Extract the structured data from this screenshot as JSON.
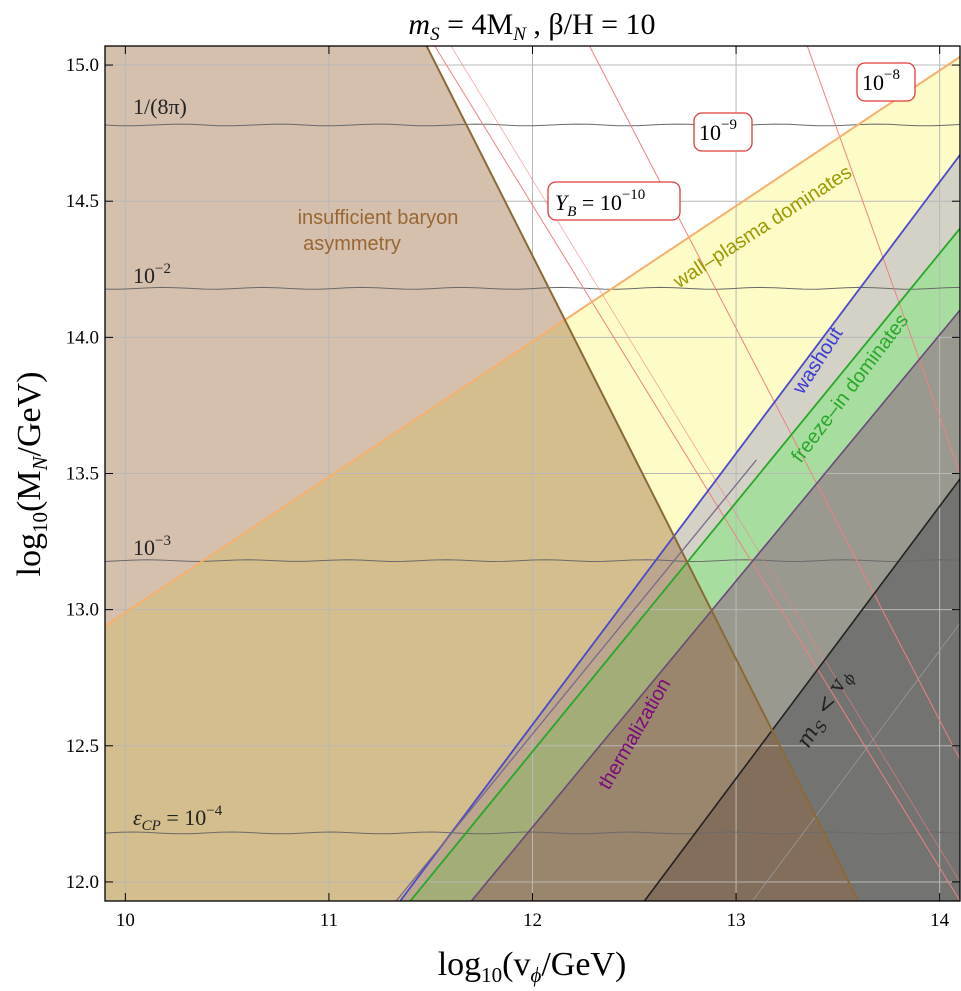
{
  "chart_data": {
    "type": "area",
    "title": "m_S = 4M_N , β/H = 10",
    "title_parts": {
      "a": "m",
      "a_sub": "S",
      "b": " = 4M",
      "b_sub": "N",
      "c": " , β/H = 10"
    },
    "xlabel_parts": {
      "pre": "log",
      "sub": "10",
      "mid": "(v",
      "sub2": "ϕ",
      "post": "/GeV)"
    },
    "ylabel_parts": {
      "pre": "log",
      "sub": "10",
      "mid": "(M",
      "sub2": "N",
      "post": "/GeV)"
    },
    "xlim": [
      9.9,
      14.1
    ],
    "ylim": [
      11.93,
      15.07
    ],
    "x_ticks": [
      10,
      11,
      12,
      13,
      14
    ],
    "x_tick_labels": [
      "10",
      "11",
      "12",
      "13",
      "14"
    ],
    "y_ticks": [
      12.0,
      12.5,
      13.0,
      13.5,
      14.0,
      14.5,
      15.0
    ],
    "y_tick_labels": [
      "12.0",
      "12.5",
      "13.0",
      "13.5",
      "14.0",
      "14.5",
      "15.0"
    ],
    "grid": true,
    "boundaries": {
      "insufficient_baryon": [
        [
          11.48,
          15.07
        ],
        [
          13.6,
          11.93
        ]
      ],
      "wall_plasma": [
        [
          9.9,
          12.94
        ],
        [
          14.1,
          15.03
        ]
      ],
      "washout": [
        [
          11.35,
          11.93
        ],
        [
          14.1,
          14.67
        ]
      ],
      "freeze_in": [
        [
          11.4,
          11.93
        ],
        [
          14.1,
          14.4
        ]
      ],
      "thermalization": [
        [
          11.7,
          11.93
        ],
        [
          14.1,
          14.1
        ]
      ],
      "mS_lt_vphi": [
        [
          12.55,
          11.93
        ],
        [
          14.1,
          13.48
        ]
      ]
    },
    "eps_cp_contours": [
      {
        "label_pre": "1/(8π)",
        "label_exp": "",
        "y": 14.78
      },
      {
        "label_pre": "10",
        "label_exp": "−2",
        "y": 14.18
      },
      {
        "label_pre": "10",
        "label_exp": "−3",
        "y": 13.18
      },
      {
        "label_pre": "ε",
        "label_sub": "CP",
        "label_mid": " = 10",
        "label_exp": "−4",
        "y": 12.18
      }
    ],
    "yb_contours": [
      {
        "label_pre": "Y",
        "label_sub": "B",
        "label_mid": " = 10",
        "label_exp": "−10",
        "points": [
          [
            11.52,
            15.07
          ],
          [
            14.1,
            11.93
          ]
        ]
      },
      {
        "label_pre": "10",
        "label_exp": "−9",
        "points": [
          [
            12.28,
            15.07
          ],
          [
            14.1,
            12.45
          ]
        ]
      },
      {
        "label_pre": "10",
        "label_exp": "−8",
        "points": [
          [
            13.35,
            15.07
          ],
          [
            14.1,
            13.5
          ]
        ]
      }
    ],
    "yb_label_positions": {
      "c1": [
        12.55,
        14.48
      ],
      "c2": [
        12.95,
        14.74
      ],
      "c3": [
        13.73,
        14.92
      ]
    },
    "region_labels": {
      "insufficient": {
        "line1": "insufficient baryon",
        "line2": "asymmetry",
        "color": "#9a6633"
      },
      "wall_plasma": {
        "text": "wall–plasma dominates",
        "color": "#9a9a00"
      },
      "washout": {
        "text": "washout",
        "color": "#3b3bd6"
      },
      "freeze_in": {
        "text": "freeze–in dominates",
        "color": "#2aa82a"
      },
      "thermalization": {
        "text": "thermalization",
        "color": "#7d0a7d"
      },
      "ms_parts": {
        "a": "m",
        "a_sub": "S",
        "b": " < v",
        "b_sub": "ϕ",
        "color": "#222222"
      }
    },
    "colors": {
      "brown_fill": "#cfb19b",
      "yellow_fill": "#fefcc6",
      "gray_band": "#d4d2c6",
      "green_band": "#a7dea0",
      "dark_gray": "#878786",
      "brown_line": "#8b6a35",
      "orange_line": "#f5b06b",
      "blue_line": "#4a4ac8",
      "green_line": "#28a828",
      "purple_line": "#6a4a7a",
      "red_line": "#f08080"
    }
  }
}
